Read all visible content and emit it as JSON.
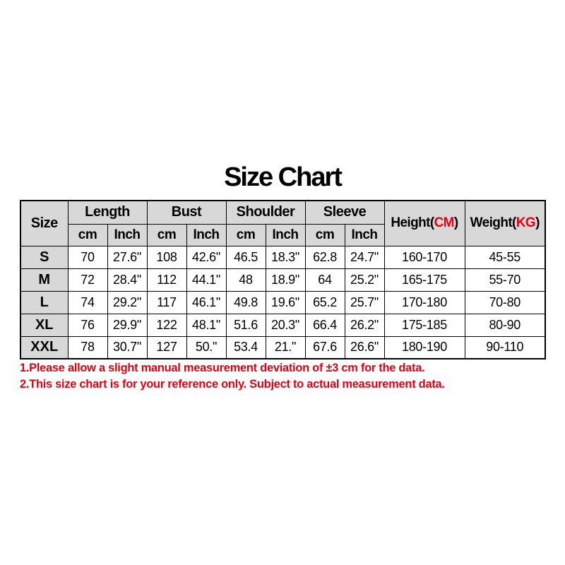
{
  "page": {
    "title": "Size Chart"
  },
  "colors": {
    "background": "#ffffff",
    "header_bg": "#d8d8d8",
    "border": "#000000",
    "text": "#000000",
    "accent_red": "#e60012"
  },
  "header": {
    "size": "Size",
    "groups": [
      "Length",
      "Bust",
      "Shoulder",
      "Sleeve"
    ],
    "sub_cm": "cm",
    "sub_inch": "Inch",
    "height": {
      "pre": "Height(",
      "unit": "CM",
      "post": ")"
    },
    "weight": {
      "pre": "Weight(",
      "unit": "KG",
      "post": ")"
    }
  },
  "chart_data": {
    "type": "table",
    "title": "Size Chart",
    "columns": [
      "Size",
      "Length cm",
      "Length Inch",
      "Bust cm",
      "Bust Inch",
      "Shoulder cm",
      "Shoulder Inch",
      "Sleeve cm",
      "Sleeve Inch",
      "Height(CM)",
      "Weight(KG)"
    ],
    "rows": [
      [
        "S",
        "70",
        "27.6\"",
        "108",
        "42.6\"",
        "46.5",
        "18.3\"",
        "62.8",
        "24.7\"",
        "160-170",
        "45-55"
      ],
      [
        "M",
        "72",
        "28.4\"",
        "112",
        "44.1\"",
        "48",
        "18.9\"",
        "64",
        "25.2\"",
        "165-175",
        "55-70"
      ],
      [
        "L",
        "74",
        "29.2\"",
        "117",
        "46.1\"",
        "49.8",
        "19.6\"",
        "65.2",
        "25.7\"",
        "170-180",
        "70-80"
      ],
      [
        "XL",
        "76",
        "29.9\"",
        "122",
        "48.1\"",
        "51.6",
        "20.3\"",
        "66.4",
        "26.2\"",
        "175-185",
        "80-90"
      ],
      [
        "XXL",
        "78",
        "30.7\"",
        "127",
        "50.\"",
        "53.4",
        "21.\"",
        "67.6",
        "26.6\"",
        "180-190",
        "90-110"
      ]
    ]
  },
  "notes": [
    "1.Please allow a slight manual measurement deviation of ±3 cm for the data.",
    "2.This size chart is for your reference only. Subject to actual measurement data."
  ]
}
